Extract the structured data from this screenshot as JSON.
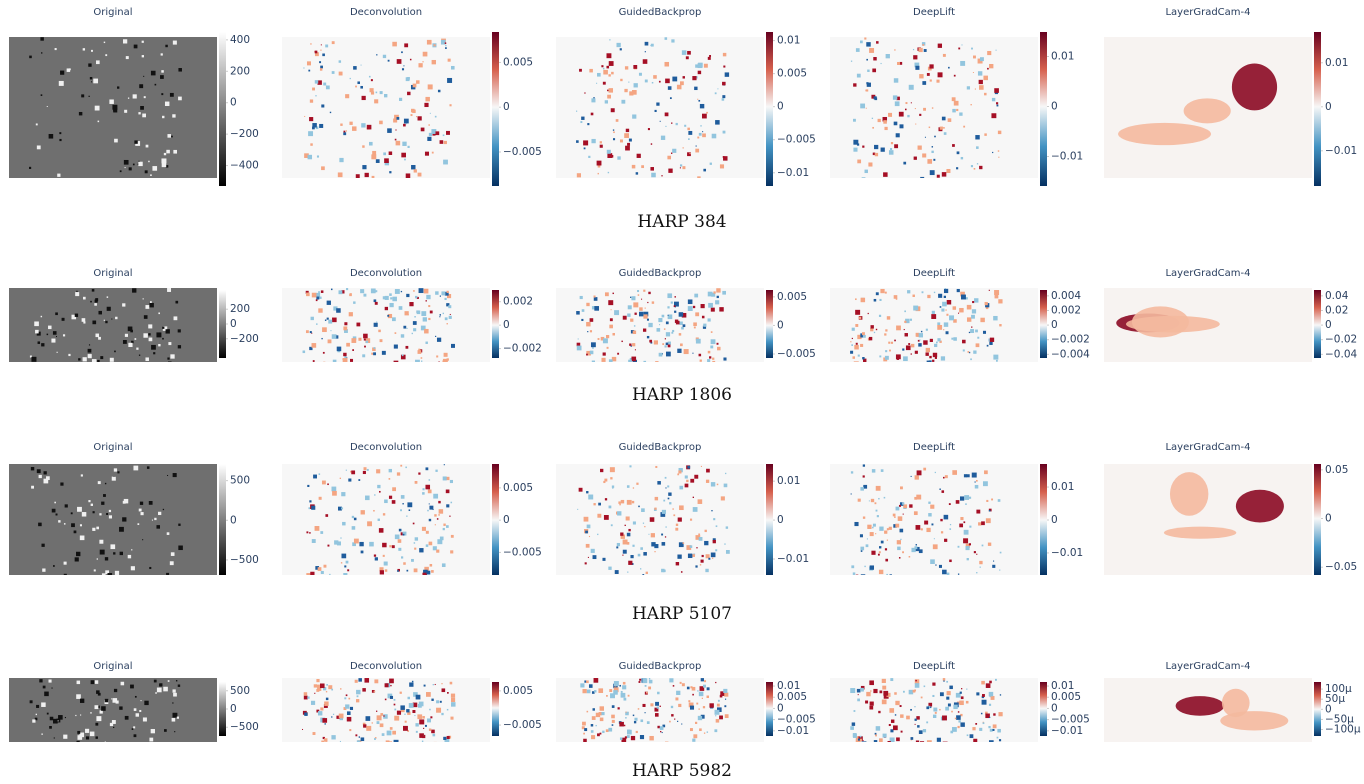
{
  "rows": [
    {
      "label": "HARP 384",
      "panels": [
        {
          "title": "Original",
          "colorscale": "Greys",
          "colorbar": {
            "range": [
              -530,
              450
            ],
            "ticks": [
              400,
              200,
              0,
              {
                "value": -200,
                "label": "−200"
              },
              {
                "value": -400,
                "label": "−400"
              }
            ]
          }
        },
        {
          "title": "Deconvolution",
          "colorscale": "RdBu",
          "colorbar": {
            "range": [
              -0.0088,
              0.0084
            ],
            "ticks": [
              0.005,
              0,
              {
                "value": -0.005,
                "label": "−0.005"
              }
            ]
          }
        },
        {
          "title": "GuidedBackprop",
          "colorscale": "RdBu",
          "colorbar": {
            "range": [
              -0.012,
              0.0113
            ],
            "ticks": [
              0.01,
              0.005,
              0,
              {
                "value": -0.005,
                "label": "−0.005"
              },
              {
                "value": -0.01,
                "label": "−0.01"
              }
            ]
          }
        },
        {
          "title": "DeepLift",
          "colorscale": "RdBu",
          "colorbar": {
            "range": [
              -0.0159,
              0.0149
            ],
            "ticks": [
              0.01,
              0,
              {
                "value": -0.01,
                "label": "−0.01"
              }
            ]
          }
        },
        {
          "title": "LayerGradCam-4",
          "colorscale": "RdBu",
          "colorbar": {
            "range": [
              -0.018,
              0.017
            ],
            "ticks": [
              0.01,
              0,
              {
                "value": -0.01,
                "label": "−0.01"
              }
            ]
          }
        }
      ]
    },
    {
      "label": "HARP 1806",
      "panels": [
        {
          "title": "Original",
          "colorscale": "Greys",
          "colorbar": {
            "range": [
              -460,
              460
            ],
            "ticks": [
              200,
              0,
              {
                "value": -200,
                "label": "−200"
              }
            ]
          }
        },
        {
          "title": "Deconvolution",
          "colorscale": "RdBu",
          "colorbar": {
            "range": [
              -0.0028,
              0.003
            ],
            "ticks": [
              0.002,
              0,
              {
                "value": -0.002,
                "label": "−0.002"
              }
            ]
          }
        },
        {
          "title": "GuidedBackprop",
          "colorscale": "RdBu",
          "colorbar": {
            "range": [
              -0.0057,
              0.0062
            ],
            "ticks": [
              0.005,
              0,
              {
                "value": -0.005,
                "label": "−0.005"
              }
            ]
          }
        },
        {
          "title": "DeepLift",
          "colorscale": "RdBu",
          "colorbar": {
            "range": [
              -0.0045,
              0.0048
            ],
            "ticks": [
              0.004,
              0.002,
              0,
              {
                "value": -0.002,
                "label": "−0.002"
              },
              {
                "value": -0.004,
                "label": "−0.004"
              }
            ]
          }
        },
        {
          "title": "LayerGradCam-4",
          "colorscale": "RdBu",
          "colorbar": {
            "range": [
              -0.045,
              0.048
            ],
            "ticks": [
              0.04,
              0.02,
              0,
              {
                "value": -0.02,
                "label": "−0.02"
              },
              {
                "value": -0.04,
                "label": "−0.04"
              }
            ]
          }
        }
      ]
    },
    {
      "label": "HARP 5107",
      "panels": [
        {
          "title": "Original",
          "colorscale": "Greys",
          "colorbar": {
            "range": [
              -690,
              710
            ],
            "ticks": [
              500,
              0,
              {
                "value": -500,
                "label": "−500"
              }
            ]
          }
        },
        {
          "title": "Deconvolution",
          "colorscale": "RdBu",
          "colorbar": {
            "range": [
              -0.0085,
              0.0087
            ],
            "ticks": [
              0.005,
              0,
              {
                "value": -0.005,
                "label": "−0.005"
              }
            ]
          }
        },
        {
          "title": "GuidedBackprop",
          "colorscale": "RdBu",
          "colorbar": {
            "range": [
              -0.0141,
              0.0144
            ],
            "ticks": [
              0.01,
              0,
              {
                "value": -0.01,
                "label": "−0.01"
              }
            ]
          }
        },
        {
          "title": "DeepLift",
          "colorscale": "RdBu",
          "colorbar": {
            "range": [
              -0.0167,
              0.017
            ],
            "ticks": [
              0.01,
              0,
              {
                "value": -0.01,
                "label": "−0.01"
              }
            ]
          }
        },
        {
          "title": "LayerGradCam-4",
          "colorscale": "RdBu",
          "colorbar": {
            "range": [
              -0.058,
              0.056
            ],
            "ticks": [
              0.05,
              0,
              {
                "value": -0.05,
                "label": "−0.05"
              }
            ]
          }
        }
      ]
    },
    {
      "label": "HARP 5982",
      "panels": [
        {
          "title": "Original",
          "colorscale": "Greys",
          "colorbar": {
            "range": [
              -740,
              740
            ],
            "ticks": [
              500,
              0,
              {
                "value": -500,
                "label": "−500"
              }
            ]
          }
        },
        {
          "title": "Deconvolution",
          "colorscale": "RdBu",
          "colorbar": {
            "range": [
              -0.0082,
              0.0076
            ],
            "ticks": [
              0.005,
              {
                "value": -0.005,
                "label": "−0.005"
              }
            ]
          }
        },
        {
          "title": "GuidedBackprop",
          "colorscale": "RdBu",
          "colorbar": {
            "range": [
              -0.0123,
              0.0118
            ],
            "ticks": [
              0.01,
              0.005,
              0,
              {
                "value": -0.005,
                "label": "−0.005"
              },
              {
                "value": -0.01,
                "label": "−0.01"
              }
            ]
          }
        },
        {
          "title": "DeepLift",
          "colorscale": "RdBu",
          "colorbar": {
            "range": [
              -0.0123,
              0.0118
            ],
            "ticks": [
              0.01,
              0.005,
              0,
              {
                "value": -0.005,
                "label": "−0.005"
              },
              {
                "value": -0.01,
                "label": "−0.01"
              }
            ]
          }
        },
        {
          "title": "LayerGradCam-4",
          "colorscale": "RdBu",
          "colorbar": {
            "range": [
              -0.000132,
              0.000135
            ],
            "ticks": [
              {
                "value": 0.0001,
                "label": "100μ"
              },
              {
                "value": 5e-05,
                "label": "50μ"
              },
              0,
              {
                "value": -5e-05,
                "label": "−50μ"
              },
              {
                "value": -0.0001,
                "label": "−100μ"
              }
            ]
          }
        }
      ]
    }
  ]
}
